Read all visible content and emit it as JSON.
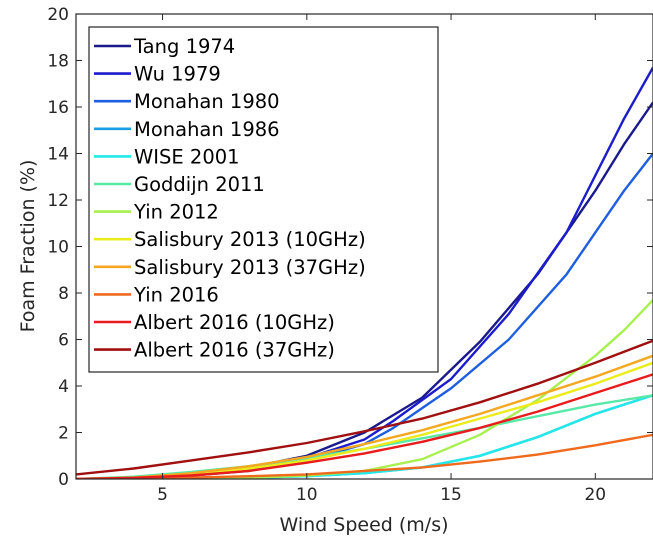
{
  "chart_data": {
    "type": "line",
    "xlabel": "Wind Speed (m/s)",
    "ylabel": "Foam Fraction (%)",
    "xlim": [
      2,
      22
    ],
    "ylim": [
      0,
      20
    ],
    "xticks": [
      5,
      10,
      15,
      20
    ],
    "yticks": [
      0,
      2,
      4,
      6,
      8,
      10,
      12,
      14,
      16,
      18,
      20
    ],
    "grid": false,
    "legend_position": "top-left",
    "series": [
      {
        "name": "Tang 1974",
        "color": "#1a1a8c",
        "x": [
          2,
          4,
          6,
          8,
          10,
          12,
          14,
          16,
          18,
          20,
          21,
          22
        ],
        "y": [
          0.0,
          0.05,
          0.2,
          0.5,
          1.0,
          2.0,
          3.5,
          5.9,
          8.8,
          12.4,
          14.4,
          16.2
        ]
      },
      {
        "name": "Wu 1979",
        "color": "#1c1ccc",
        "x": [
          2,
          4,
          6,
          8,
          10,
          12,
          13,
          15,
          17,
          19,
          21,
          22
        ],
        "y": [
          0.0,
          0.04,
          0.15,
          0.4,
          0.9,
          1.7,
          2.5,
          4.3,
          7.1,
          10.6,
          15.5,
          17.7
        ]
      },
      {
        "name": "Monahan 1980",
        "color": "#1e5ee0",
        "x": [
          2,
          4,
          6,
          8,
          10,
          12,
          13,
          15,
          17,
          19,
          21,
          22
        ],
        "y": [
          0.0,
          0.04,
          0.15,
          0.35,
          0.8,
          1.5,
          2.2,
          3.9,
          6.0,
          8.8,
          12.4,
          14.0
        ]
      },
      {
        "name": "Monahan 1986",
        "color": "#1aa0e8",
        "x": [
          2,
          4,
          6,
          8,
          10,
          12,
          14,
          16,
          18,
          20,
          22
        ],
        "y": [
          0.0,
          0.0,
          0.02,
          0.05,
          0.12,
          0.25,
          0.5,
          1.0,
          1.8,
          2.8,
          3.6
        ]
      },
      {
        "name": "WISE 2001",
        "color": "#22e8e8",
        "x": [
          2,
          4,
          6,
          8,
          10,
          12,
          14,
          16,
          18,
          20,
          22
        ],
        "y": [
          0.0,
          0.0,
          0.02,
          0.05,
          0.12,
          0.25,
          0.5,
          1.0,
          1.8,
          2.8,
          3.6
        ]
      },
      {
        "name": "Goddijn 2011",
        "color": "#58e8a8",
        "x": [
          2,
          4,
          6,
          8,
          10,
          12,
          14,
          16,
          18,
          20,
          22
        ],
        "y": [
          0.0,
          0.1,
          0.3,
          0.55,
          0.9,
          1.3,
          1.75,
          2.2,
          2.7,
          3.2,
          3.6
        ]
      },
      {
        "name": "Yin 2012",
        "color": "#a8f050",
        "x": [
          2,
          4,
          6,
          8,
          10,
          12,
          14,
          16,
          18,
          20,
          21,
          22
        ],
        "y": [
          0.0,
          0.0,
          0.02,
          0.05,
          0.15,
          0.35,
          0.85,
          1.9,
          3.4,
          5.3,
          6.4,
          7.7
        ]
      },
      {
        "name": "Salisbury 2013 (10GHz)",
        "color": "#ecec1c",
        "x": [
          2,
          4,
          6,
          8,
          10,
          12,
          14,
          16,
          18,
          20,
          22
        ],
        "y": [
          0.0,
          0.05,
          0.2,
          0.45,
          0.8,
          1.3,
          1.9,
          2.6,
          3.3,
          4.1,
          5.0
        ]
      },
      {
        "name": "Salisbury 2013 (37GHz)",
        "color": "#f4a822",
        "x": [
          2,
          4,
          6,
          8,
          10,
          12,
          14,
          16,
          18,
          20,
          22
        ],
        "y": [
          0.0,
          0.06,
          0.25,
          0.55,
          0.95,
          1.5,
          2.1,
          2.8,
          3.6,
          4.4,
          5.3
        ]
      },
      {
        "name": "Yin 2016",
        "color": "#f06a1e",
        "x": [
          2,
          4,
          6,
          8,
          10,
          12,
          14,
          16,
          18,
          20,
          22
        ],
        "y": [
          0.0,
          0.02,
          0.06,
          0.12,
          0.2,
          0.35,
          0.5,
          0.75,
          1.05,
          1.45,
          1.9
        ]
      },
      {
        "name": "Albert 2016 (10GHz)",
        "color": "#e81c1c",
        "x": [
          2,
          4,
          6,
          8,
          10,
          12,
          14,
          16,
          18,
          20,
          22
        ],
        "y": [
          0.0,
          0.05,
          0.15,
          0.35,
          0.7,
          1.1,
          1.6,
          2.2,
          2.9,
          3.7,
          4.5
        ]
      },
      {
        "name": "Albert 2016 (37GHz)",
        "color": "#a01010",
        "x": [
          2,
          4,
          6,
          8,
          10,
          12,
          14,
          16,
          18,
          20,
          22
        ],
        "y": [
          0.2,
          0.45,
          0.8,
          1.15,
          1.55,
          2.05,
          2.6,
          3.3,
          4.1,
          5.0,
          5.95
        ]
      }
    ]
  }
}
